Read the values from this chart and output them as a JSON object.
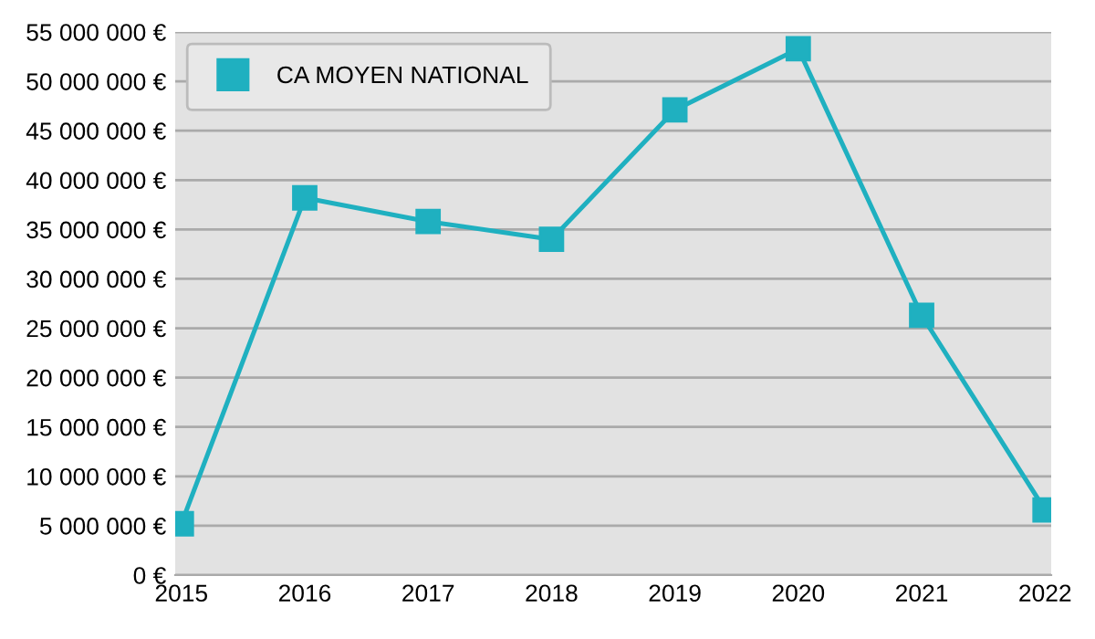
{
  "chart_data": {
    "type": "line",
    "categories": [
      "2015",
      "2016",
      "2017",
      "2018",
      "2019",
      "2020",
      "2021",
      "2022"
    ],
    "series": [
      {
        "name": "CA MOYEN NATIONAL",
        "color": "#1fb0c0",
        "values": [
          5200000,
          38200000,
          35800000,
          34000000,
          47100000,
          53300000,
          26300000,
          6600000
        ]
      }
    ],
    "ylim": [
      0,
      55000000
    ],
    "yticks": [
      {
        "value": 0,
        "label": "0 €"
      },
      {
        "value": 5000000,
        "label": "5 000 000 €"
      },
      {
        "value": 10000000,
        "label": "10 000 000 €"
      },
      {
        "value": 15000000,
        "label": "15 000 000 €"
      },
      {
        "value": 20000000,
        "label": "20 000 000 €"
      },
      {
        "value": 25000000,
        "label": "25 000 000 €"
      },
      {
        "value": 30000000,
        "label": "30 000 000 €"
      },
      {
        "value": 35000000,
        "label": "35 000 000 €"
      },
      {
        "value": 40000000,
        "label": "40 000 000 €"
      },
      {
        "value": 45000000,
        "label": "45 000 000 €"
      },
      {
        "value": 50000000,
        "label": "50 000 000 €"
      },
      {
        "value": 55000000,
        "label": "55 000 000 €"
      }
    ],
    "grid": "y",
    "legend": "top left",
    "marker": "square",
    "line_style": "solid"
  }
}
